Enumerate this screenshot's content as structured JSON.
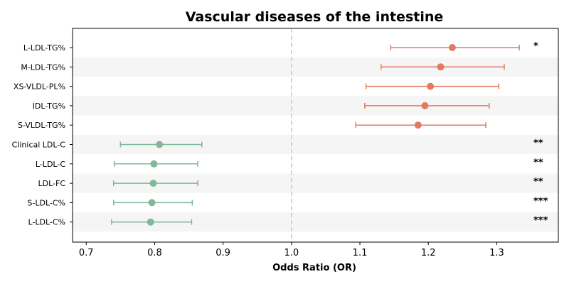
{
  "chart_data": {
    "type": "forest",
    "title": "Vascular diseases of the intestine",
    "xlabel": "Odds Ratio (OR)",
    "ylabel": "",
    "xlim": [
      0.68,
      1.39
    ],
    "xticks": [
      "0.7",
      "0.8",
      "0.9",
      "1.0",
      "1.1",
      "1.2",
      "1.3"
    ],
    "reference_line": 1.0,
    "grid": false,
    "row_banding": true,
    "colors": {
      "positive": "#e07b62",
      "negative": "#7fb89a",
      "reference": "#f5c08a",
      "band": "#f5f5f5"
    },
    "rows": [
      {
        "label": "L-LDL-TG%",
        "or": 1.235,
        "lo": 1.145,
        "hi": 1.333,
        "sig": "*"
      },
      {
        "label": "M-LDL-TG%",
        "or": 1.218,
        "lo": 1.131,
        "hi": 1.311,
        "sig": ""
      },
      {
        "label": "XS-VLDL-PL%",
        "or": 1.203,
        "lo": 1.109,
        "hi": 1.303,
        "sig": ""
      },
      {
        "label": "IDL-TG%",
        "or": 1.195,
        "lo": 1.107,
        "hi": 1.289,
        "sig": ""
      },
      {
        "label": "S-VLDL-TG%",
        "or": 1.185,
        "lo": 1.094,
        "hi": 1.284,
        "sig": ""
      },
      {
        "label": "Clinical LDL-C",
        "or": 0.807,
        "lo": 0.75,
        "hi": 0.869,
        "sig": "**"
      },
      {
        "label": "L-LDL-C",
        "or": 0.799,
        "lo": 0.741,
        "hi": 0.863,
        "sig": "**"
      },
      {
        "label": "LDL-FC",
        "or": 0.798,
        "lo": 0.74,
        "hi": 0.863,
        "sig": "**"
      },
      {
        "label": "S-LDL-C%",
        "or": 0.796,
        "lo": 0.74,
        "hi": 0.855,
        "sig": "***"
      },
      {
        "label": "L-LDL-C%",
        "or": 0.794,
        "lo": 0.737,
        "hi": 0.854,
        "sig": "***"
      }
    ]
  }
}
